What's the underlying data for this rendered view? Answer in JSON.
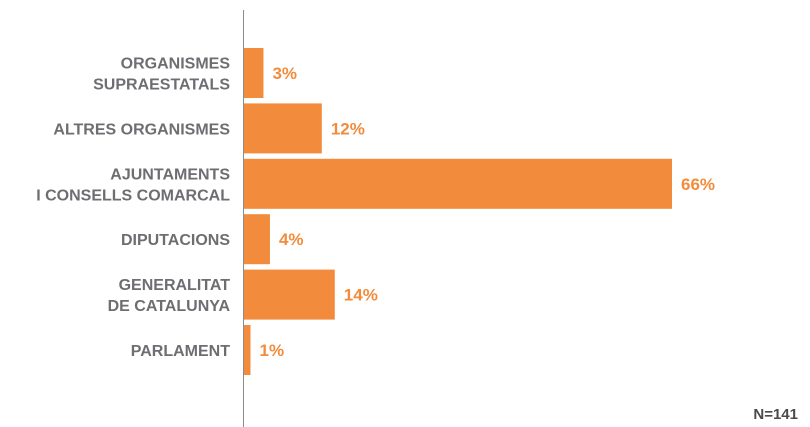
{
  "chart_data": {
    "type": "bar",
    "orientation": "horizontal",
    "categories": [
      [
        "ORGANISMES",
        "SUPRAESTATALS"
      ],
      [
        "ALTRES ORGANISMES"
      ],
      [
        "AJUNTAMENTS",
        "I CONSELLS COMARCAL"
      ],
      [
        "DIPUTACIONS"
      ],
      [
        "GENERALITAT",
        "DE CATALUNYA"
      ],
      [
        "PARLAMENT"
      ]
    ],
    "values": [
      3,
      12,
      66,
      4,
      14,
      1
    ],
    "value_labels": [
      "3%",
      "12%",
      "66%",
      "4%",
      "14%",
      "1%"
    ],
    "unit": "%",
    "xlim": [
      0,
      66
    ],
    "grid": false,
    "note": "N=141"
  },
  "colors": {
    "bar": "#f28c3c",
    "value_label": "#f28c3c",
    "category_label": "#6d6e71",
    "axis": "#8c8c8c",
    "note": "#4a4a4a"
  }
}
